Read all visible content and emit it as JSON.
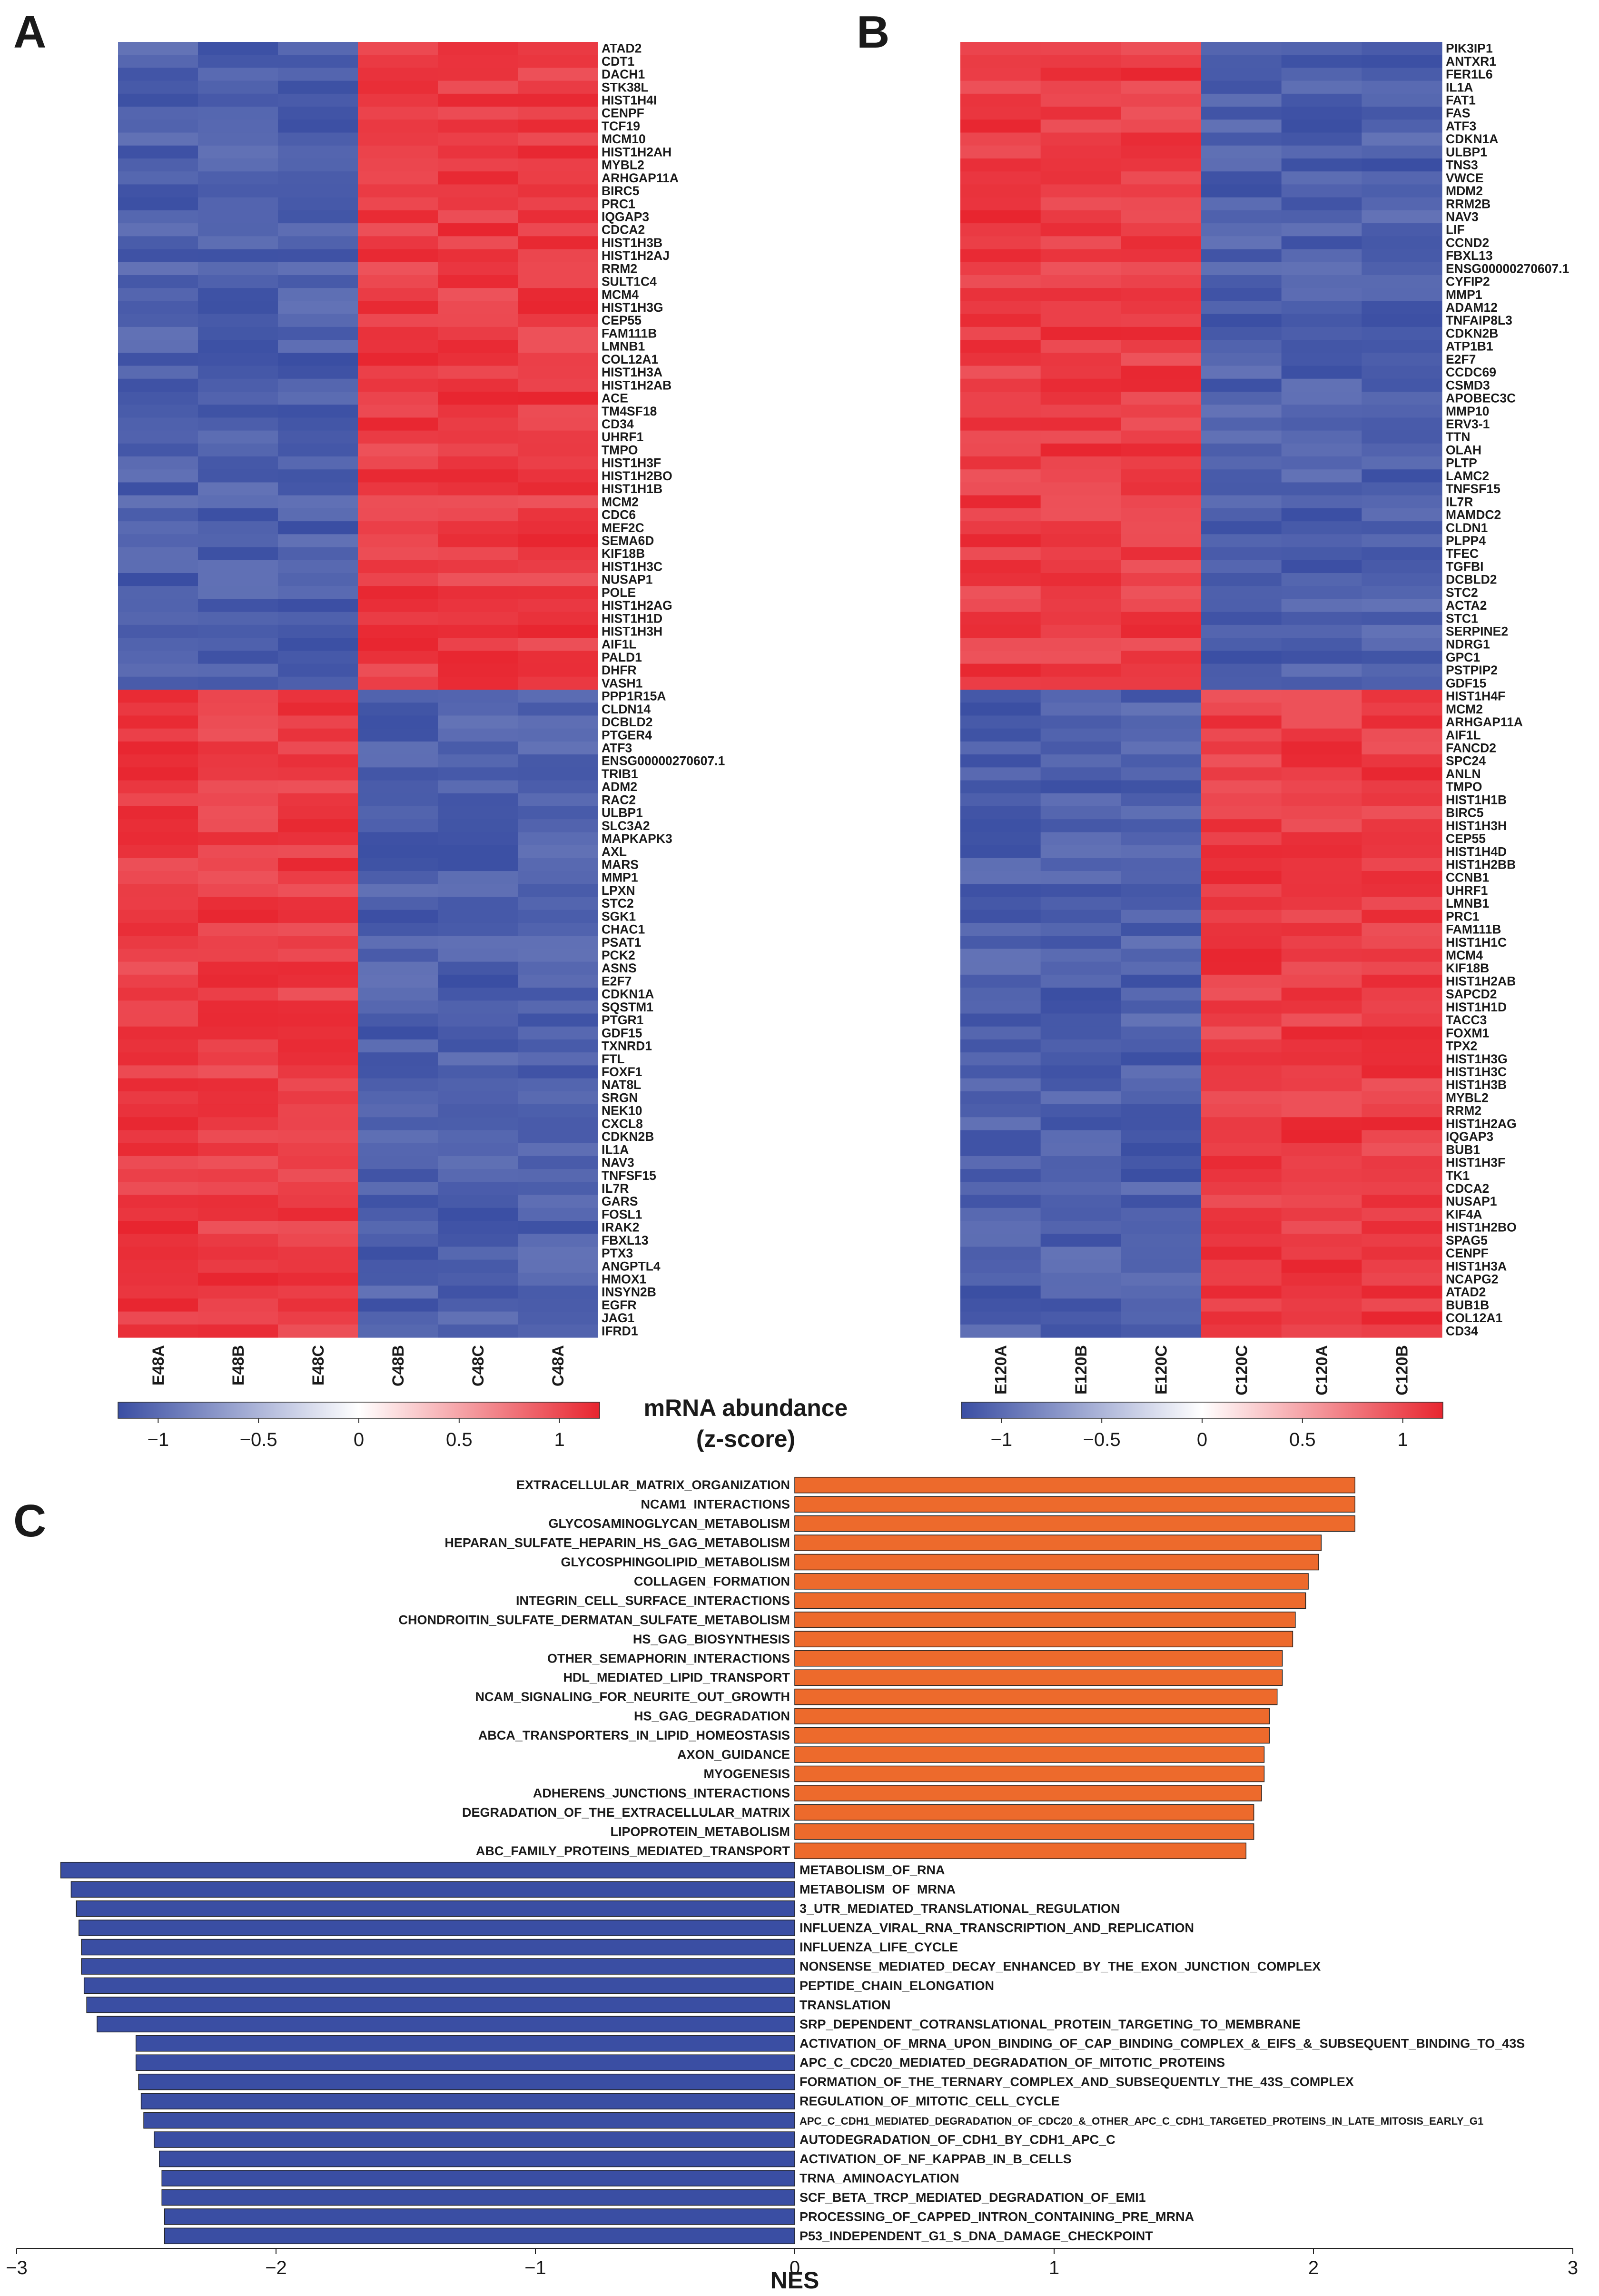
{
  "chart_data": [
    {
      "panel": "A",
      "type": "heatmap",
      "samples": [
        "E48A",
        "E48B",
        "E48C",
        "C48B",
        "C48C",
        "C48A"
      ],
      "up_in_control_genes": [
        "ATAD2",
        "CDT1",
        "DACH1",
        "STK38L",
        "HIST1H4I",
        "CENPF",
        "TCF19",
        "MCM10",
        "HIST1H2AH",
        "MYBL2",
        "ARHGAP11A",
        "BIRC5",
        "PRC1",
        "IQGAP3",
        "CDCA2",
        "HIST1H3B",
        "HIST1H2AJ",
        "RRM2",
        "SULT1C4",
        "MCM4",
        "HIST1H3G",
        "CEP55",
        "FAM111B",
        "LMNB1",
        "COL12A1",
        "HIST1H3A",
        "HIST1H2AB",
        "ACE",
        "TM4SF18",
        "CD34",
        "UHRF1",
        "TMPO",
        "HIST1H3F",
        "HIST1H2BO",
        "HIST1H1B",
        "MCM2",
        "CDC6",
        "MEF2C",
        "SEMA6D",
        "KIF18B",
        "HIST1H3C",
        "NUSAP1",
        "POLE",
        "HIST1H2AG",
        "HIST1H1D",
        "HIST1H3H",
        "AIF1L",
        "PALD1",
        "DHFR",
        "VASH1"
      ],
      "up_in_treated_genes": [
        "PPP1R15A",
        "CLDN14",
        "DCBLD2",
        "PTGER4",
        "ATF3",
        "ENSG00000270607.1",
        "TRIB1",
        "ADM2",
        "RAC2",
        "ULBP1",
        "SLC3A2",
        "MAPKAPK3",
        "AXL",
        "MARS",
        "MMP1",
        "LPXN",
        "STC2",
        "SGK1",
        "CHAC1",
        "PSAT1",
        "PCK2",
        "ASNS",
        "E2F7",
        "CDKN1A",
        "SQSTM1",
        "PTGR1",
        "GDF15",
        "TXNRD1",
        "FTL",
        "FOXF1",
        "NAT8L",
        "SRGN",
        "NEK10",
        "CXCL8",
        "CDKN2B",
        "IL1A",
        "NAV3",
        "TNFSF15",
        "IL7R",
        "GARS",
        "FOSL1",
        "IRAK2",
        "FBXL13",
        "PTX3",
        "ANGPTL4",
        "HMOX1",
        "INSYN2B",
        "EGFR",
        "JAG1",
        "IFRD1"
      ],
      "treated_samples": [
        "E48A",
        "E48B",
        "E48C"
      ]
    },
    {
      "panel": "B",
      "type": "heatmap",
      "samples": [
        "E120A",
        "E120B",
        "E120C",
        "C120C",
        "C120A",
        "C120B"
      ],
      "up_in_treated_genes": [
        "PIK3IP1",
        "ANTXR1",
        "FER1L6",
        "IL1A",
        "FAT1",
        "FAS",
        "ATF3",
        "CDKN1A",
        "ULBP1",
        "TNS3",
        "VWCE",
        "MDM2",
        "RRM2B",
        "NAV3",
        "LIF",
        "CCND2",
        "FBXL13",
        "ENSG00000270607.1",
        "CYFIP2",
        "MMP1",
        "ADAM12",
        "TNFAIP8L3",
        "CDKN2B",
        "ATP1B1",
        "E2F7",
        "CCDC69",
        "CSMD3",
        "APOBEC3C",
        "MMP10",
        "ERV3-1",
        "TTN",
        "OLAH",
        "PLTP",
        "LAMC2",
        "TNFSF15",
        "IL7R",
        "MAMDC2",
        "CLDN1",
        "PLPP4",
        "TFEC",
        "TGFBI",
        "DCBLD2",
        "STC2",
        "ACTA2",
        "STC1",
        "SERPINE2",
        "NDRG1",
        "GPC1",
        "PSTPIP2",
        "GDF15"
      ],
      "up_in_control_genes": [
        "HIST1H4F",
        "MCM2",
        "ARHGAP11A",
        "AIF1L",
        "FANCD2",
        "SPC24",
        "ANLN",
        "TMPO",
        "HIST1H1B",
        "BIRC5",
        "HIST1H3H",
        "CEP55",
        "HIST1H4D",
        "HIST1H2BB",
        "CCNB1",
        "UHRF1",
        "LMNB1",
        "PRC1",
        "FAM111B",
        "HIST1H1C",
        "MCM4",
        "KIF18B",
        "HIST1H2AB",
        "SAPCD2",
        "HIST1H1D",
        "TACC3",
        "FOXM1",
        "TPX2",
        "HIST1H3G",
        "HIST1H3C",
        "HIST1H3B",
        "MYBL2",
        "RRM2",
        "HIST1H2AG",
        "IQGAP3",
        "BUB1",
        "HIST1H3F",
        "TK1",
        "CDCA2",
        "NUSAP1",
        "KIF4A",
        "HIST1H2BO",
        "SPAG5",
        "CENPF",
        "HIST1H3A",
        "NCAPG2",
        "ATAD2",
        "BUB1B",
        "COL12A1",
        "CD34"
      ],
      "treated_samples": [
        "E120A",
        "E120B",
        "E120C"
      ]
    },
    {
      "panel": "C",
      "type": "bar",
      "orientation": "horizontal",
      "categories": [
        "EXTRACELLULAR_MATRIX_ORGANIZATION",
        "NCAM1_INTERACTIONS",
        "GLYCOSAMINOGLYCAN_METABOLISM",
        "HEPARAN_SULFATE_HEPARIN_HS_GAG_METABOLISM",
        "GLYCOSPHINGOLIPID_METABOLISM",
        "COLLAGEN_FORMATION",
        "INTEGRIN_CELL_SURFACE_INTERACTIONS",
        "CHONDROITIN_SULFATE_DERMATAN_SULFATE_METABOLISM",
        "HS_GAG_BIOSYNTHESIS",
        "OTHER_SEMAPHORIN_INTERACTIONS",
        "HDL_MEDIATED_LIPID_TRANSPORT",
        "NCAM_SIGNALING_FOR_NEURITE_OUT_GROWTH",
        "HS_GAG_DEGRADATION",
        "ABCA_TRANSPORTERS_IN_LIPID_HOMEOSTASIS",
        "AXON_GUIDANCE",
        "MYOGENESIS",
        "ADHERENS_JUNCTIONS_INTERACTIONS",
        "DEGRADATION_OF_THE_EXTRACELLULAR_MATRIX",
        "LIPOPROTEIN_METABOLISM",
        "ABC_FAMILY_PROTEINS_MEDIATED_TRANSPORT",
        "METABOLISM_OF_RNA",
        "METABOLISM_OF_MRNA",
        "3_UTR_MEDIATED_TRANSLATIONAL_REGULATION",
        "INFLUENZA_VIRAL_RNA_TRANSCRIPTION_AND_REPLICATION",
        "INFLUENZA_LIFE_CYCLE",
        "NONSENSE_MEDIATED_DECAY_ENHANCED_BY_THE_EXON_JUNCTION_COMPLEX",
        "PEPTIDE_CHAIN_ELONGATION",
        "TRANSLATION",
        "SRP_DEPENDENT_COTRANSLATIONAL_PROTEIN_TARGETING_TO_MEMBRANE",
        "ACTIVATION_OF_MRNA_UPON_BINDING_OF_CAP_BINDING_COMPLEX_&_EIFS_&_SUBSEQUENT_BINDING_TO_43S",
        "APC_C_CDC20_MEDIATED_DEGRADATION_OF_MITOTIC_PROTEINS",
        "FORMATION_OF_THE_TERNARY_COMPLEX_AND_SUBSEQUENTLY_THE_43S_COMPLEX",
        "REGULATION_OF_MITOTIC_CELL_CYCLE",
        "APC_C_CDH1_MEDIATED_DEGRADATION_OF_CDC20_&_OTHER_APC_C_CDH1_TARGETED_PROTEINS_IN_LATE_MITOSIS_EARLY_G1",
        "AUTODEGRADATION_OF_CDH1_BY_CDH1_APC_C",
        "ACTIVATION_OF_NF_KAPPAB_IN_B_CELLS",
        "TRNA_AMINOACYLATION",
        "SCF_BETA_TRCP_MEDIATED_DEGRADATION_OF_EMI1",
        "PROCESSING_OF_CAPPED_INTRON_CONTAINING_PRE_MRNA",
        "P53_INDEPENDENT_G1_S_DNA_DAMAGE_CHECKPOINT"
      ],
      "values": [
        2.16,
        2.16,
        2.16,
        2.03,
        2.02,
        1.98,
        1.97,
        1.93,
        1.92,
        1.88,
        1.88,
        1.86,
        1.83,
        1.83,
        1.81,
        1.81,
        1.8,
        1.77,
        1.77,
        1.74,
        -2.83,
        -2.79,
        -2.77,
        -2.76,
        -2.75,
        -2.75,
        -2.74,
        -2.73,
        -2.69,
        -2.54,
        -2.54,
        -2.53,
        -2.52,
        -2.51,
        -2.47,
        -2.45,
        -2.44,
        -2.44,
        -2.43,
        -2.43
      ],
      "xlabel": "NES",
      "xlim": [
        -3,
        3
      ],
      "xticks": [
        -3,
        -2,
        -1,
        0,
        1,
        2,
        3
      ],
      "positive_color": "#ed6a2c",
      "negative_color": "#3a4ea3"
    }
  ],
  "panels": {
    "a": "A",
    "b": "B",
    "c": "C"
  },
  "colorbar": {
    "title_line1": "mRNA abundance",
    "title_line2": "(z-score)",
    "ticks": [
      "−1",
      "−0.5",
      "0",
      "0.5",
      "1"
    ],
    "low_color": "#3a4ea3",
    "mid_color": "#ffffff",
    "high_color": "#e8252f"
  }
}
